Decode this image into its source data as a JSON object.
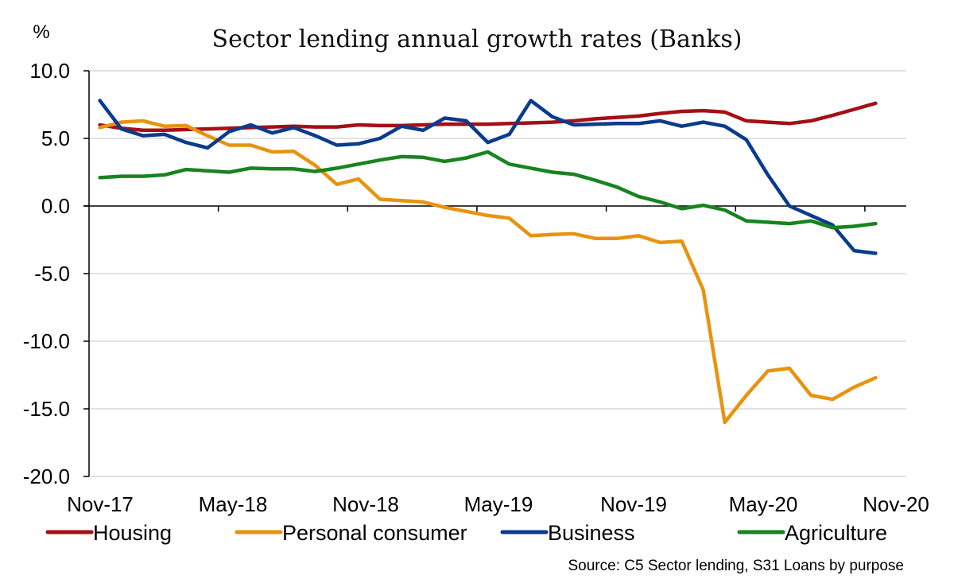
{
  "chart_data": {
    "type": "line",
    "title": "Sector lending annual growth rates (Banks)",
    "ylabel": "%",
    "xlabel": "",
    "ylim": [
      -20,
      10
    ],
    "yticks": [
      10,
      5,
      0,
      -5,
      -10,
      -15,
      -20
    ],
    "ytick_labels": [
      "10.0",
      "5.0",
      "0.0",
      "-5.0",
      "-10.0",
      "-15.0",
      "-20.0"
    ],
    "xtick_labels": [
      "Nov-17",
      "May-18",
      "Nov-18",
      "May-19",
      "Nov-19",
      "May-20",
      "Nov-20"
    ],
    "x_period": "monthly, Nov-17 to Nov-20",
    "grid": "horizontal",
    "legend_position": "bottom",
    "series": [
      {
        "name": "Housing",
        "color": "#A50F15",
        "values": [
          6.0,
          5.75,
          5.6,
          5.6,
          5.65,
          5.7,
          5.75,
          5.8,
          5.85,
          5.9,
          5.85,
          5.85,
          6.0,
          5.95,
          5.95,
          6.0,
          6.05,
          6.05,
          6.05,
          6.1,
          6.15,
          6.2,
          6.3,
          6.45,
          6.55,
          6.65,
          6.85,
          7.0,
          7.05,
          6.95,
          6.3,
          6.2,
          6.1,
          6.3,
          6.7,
          7.15,
          7.6
        ]
      },
      {
        "name": "Personal consumer",
        "color": "#E8930F",
        "values": [
          5.8,
          6.2,
          6.3,
          5.9,
          5.95,
          5.2,
          4.5,
          4.5,
          4.0,
          4.05,
          3.0,
          1.6,
          2.0,
          0.5,
          0.4,
          0.3,
          -0.1,
          -0.4,
          -0.7,
          -0.9,
          -2.2,
          -2.1,
          -2.05,
          -2.4,
          -2.4,
          -2.2,
          -2.7,
          -2.6,
          -6.2,
          -16.0,
          -14.0,
          -12.2,
          -12.0,
          -14.0,
          -14.3,
          -13.4,
          -12.7
        ]
      },
      {
        "name": "Business",
        "color": "#0B3B8C",
        "values": [
          7.8,
          5.7,
          5.2,
          5.3,
          4.7,
          4.3,
          5.5,
          6.0,
          5.4,
          5.8,
          5.2,
          4.5,
          4.6,
          5.0,
          5.9,
          5.6,
          6.5,
          6.3,
          4.7,
          5.3,
          7.8,
          6.6,
          6.0,
          6.05,
          6.1,
          6.1,
          6.3,
          5.9,
          6.2,
          5.9,
          4.9,
          2.3,
          0.0,
          -0.7,
          -1.4,
          -3.3,
          -3.5
        ]
      },
      {
        "name": "Agriculture",
        "color": "#18841F",
        "values": [
          2.1,
          2.2,
          2.2,
          2.3,
          2.7,
          2.6,
          2.5,
          2.8,
          2.75,
          2.75,
          2.55,
          2.8,
          3.1,
          3.4,
          3.65,
          3.6,
          3.3,
          3.55,
          4.0,
          3.1,
          2.8,
          2.5,
          2.35,
          1.9,
          1.4,
          0.7,
          0.3,
          -0.2,
          0.05,
          -0.3,
          -1.1,
          -1.2,
          -1.3,
          -1.1,
          -1.6,
          -1.5,
          -1.3
        ]
      }
    ],
    "source": "Source: C5 Sector lending, S31 Loans by purpose"
  }
}
